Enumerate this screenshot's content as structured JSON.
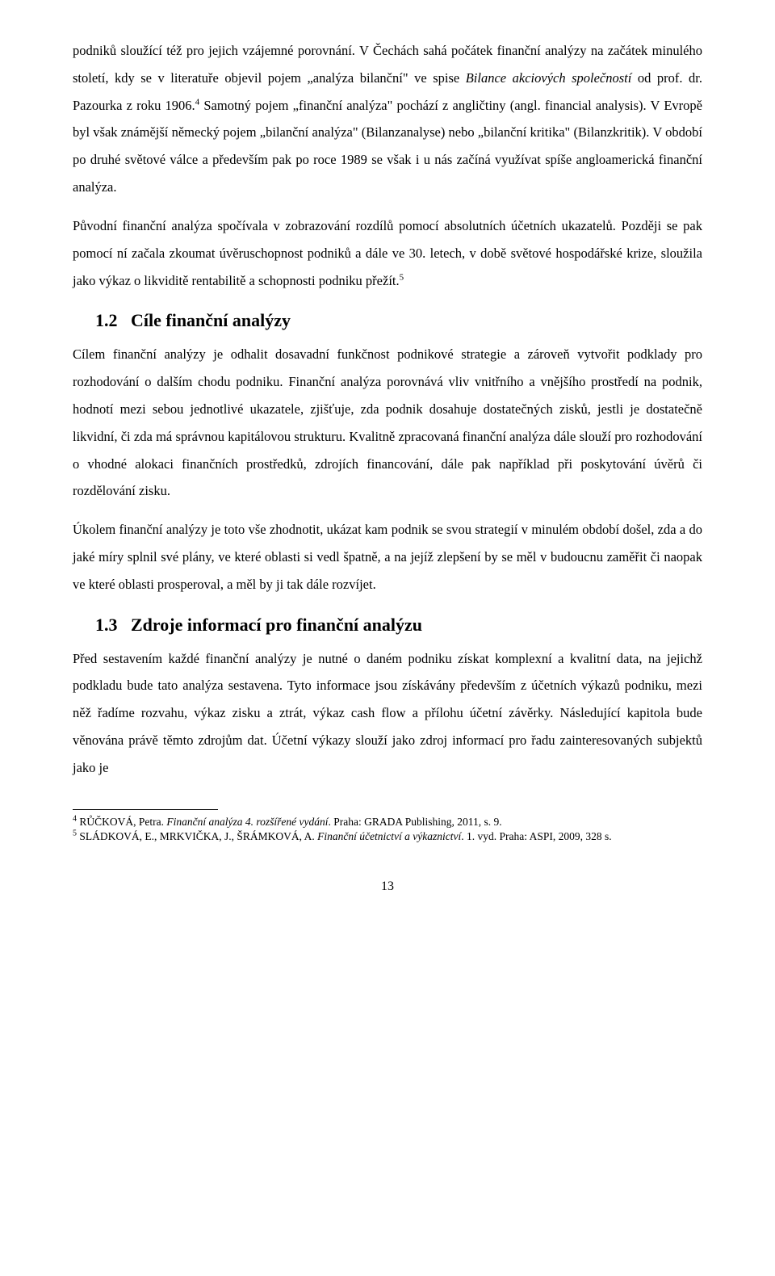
{
  "paragraphs": {
    "p1_a": "podniků sloužící též pro jejich vzájemné porovnání. V Čechách sahá počátek finanční analýzy na začátek minulého století, kdy se v literatuře objevil pojem „analýza bilanční\" ve spise ",
    "p1_b": "Bilance akciových společností",
    "p1_c": " od prof. dr. Pazourka z roku 1906.",
    "p1_sup": "4",
    "p1_d": " Samotný pojem „finanční analýza\" pochází z angličtiny (angl. financial analysis). V Evropě byl však známější německý pojem „bilanční analýza\" (Bilanzanalyse) nebo „bilanční kritika\" (Bilanzkritik). V období po druhé světové válce a především pak po roce 1989 se však i u nás začíná využívat spíše angloamerická finanční analýza.",
    "p2_a": "Původní finanční analýza spočívala v zobrazování rozdílů pomocí absolutních účetních ukazatelů. Později se pak pomocí ní začala zkoumat úvěruschopnost podniků a dále ve 30. letech, v době světové hospodářské krize, sloužila jako výkaz o likviditě rentabilitě a schopnosti podniku přežít.",
    "p2_sup": "5",
    "h12_num": "1.2",
    "h12_title": "Cíle finanční analýzy",
    "p3": "Cílem finanční analýzy je odhalit dosavadní funkčnost podnikové strategie a zároveň vytvořit podklady pro rozhodování o dalším chodu podniku. Finanční analýza porovnává vliv vnitřního a vnějšího prostředí na podnik, hodnotí mezi sebou jednotlivé ukazatele, zjišťuje, zda podnik dosahuje dostatečných zisků, jestli je dostatečně likvidní, či zda má správnou kapitálovou strukturu. Kvalitně zpracovaná finanční analýza dále slouží pro rozhodování o vhodné alokaci finančních prostředků, zdrojích financování, dále pak například při poskytování úvěrů či rozdělování zisku.",
    "p4": "Úkolem finanční analýzy je toto vše zhodnotit, ukázat kam podnik se svou strategií v minulém období došel, zda a do jaké míry splnil své plány, ve které oblasti si vedl špatně, a na jejíž zlepšení by se měl v budoucnu zaměřit či naopak ve které oblasti prosperoval, a měl by ji tak dále rozvíjet.",
    "h13_num": "1.3",
    "h13_title": "Zdroje informací pro finanční analýzu",
    "p5": "Před sestavením každé finanční analýzy je nutné o daném podniku získat komplexní a kvalitní data, na jejichž podkladu bude tato analýza sestavena. Tyto informace jsou získávány především z účetních výkazů podniku, mezi něž řadíme rozvahu, výkaz zisku a ztrát, výkaz cash flow a přílohu účetní závěrky. Následující kapitola bude věnována právě těmto zdrojům dat. Účetní výkazy slouží jako zdroj informací pro řadu zainteresovaných subjektů jako je"
  },
  "footnotes": {
    "f4_sup": "4",
    "f4_a": " RŮČKOVÁ, Petra. ",
    "f4_it": "Finanční analýza 4. rozšířené vydání",
    "f4_b": ". Praha: GRADA Publishing, 2011, s. 9.",
    "f5_sup": "5",
    "f5_a": " SLÁDKOVÁ, E., MRKVIČKA, J., ŠRÁMKOVÁ, A. ",
    "f5_it": "Finanční účetnictví a výkaznictví",
    "f5_b": ". 1. vyd. Praha: ASPI, 2009, 328 s."
  },
  "page_number": "13"
}
